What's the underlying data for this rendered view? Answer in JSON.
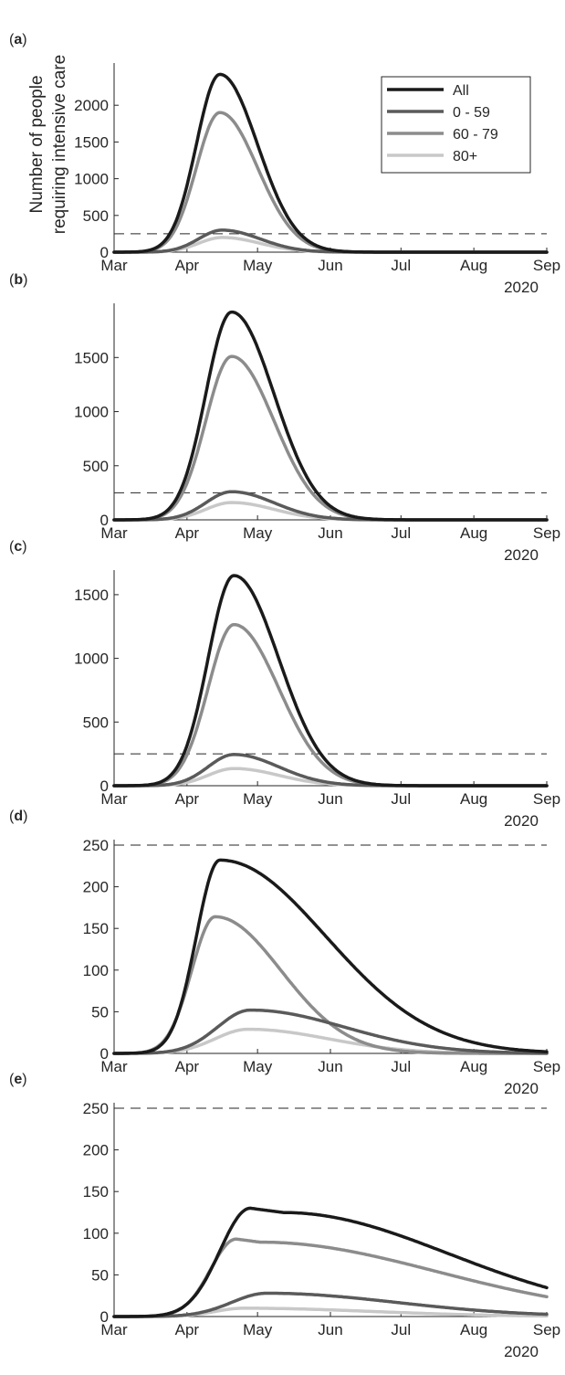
{
  "figure": {
    "ylabel_lines": [
      "Number of people",
      "requiring intensive care"
    ],
    "year_label": "2020",
    "months": [
      "Mar",
      "Apr",
      "May",
      "Jun",
      "Jul",
      "Aug",
      "Sep"
    ],
    "legend": {
      "placement": "top-right (panel a)",
      "entries": [
        {
          "label": "All",
          "color": "#1a1a1a"
        },
        {
          "label": "0 - 59",
          "color": "#5a5a5a"
        },
        {
          "label": "60 - 79",
          "color": "#8c8c8c"
        },
        {
          "label": "80+",
          "color": "#c8c8c8"
        }
      ]
    },
    "threshold_style": "dashed"
  },
  "chart_data": [
    {
      "type": "line",
      "panel_label": "a",
      "x_unit": "2020 date",
      "ylim": [
        0,
        2500
      ],
      "yticks": [
        0,
        500,
        1000,
        1500,
        2000
      ],
      "threshold": 250,
      "series": [
        {
          "name": "All",
          "color": "#1a1a1a",
          "peak_date": "2020-04-15",
          "peak_value": 2420,
          "rise_days": 10,
          "fall_days": 16
        },
        {
          "name": "0 - 59",
          "color": "#5a5a5a",
          "peak_date": "2020-04-16",
          "peak_value": 300,
          "rise_days": 10,
          "fall_days": 16
        },
        {
          "name": "60 - 79",
          "color": "#8c8c8c",
          "peak_date": "2020-04-15",
          "peak_value": 1900,
          "rise_days": 10,
          "fall_days": 16
        },
        {
          "name": "80+",
          "color": "#c8c8c8",
          "peak_date": "2020-04-16",
          "peak_value": 200,
          "rise_days": 10,
          "fall_days": 16
        }
      ]
    },
    {
      "type": "line",
      "panel_label": "b",
      "x_unit": "2020 date",
      "ylim": [
        0,
        1950
      ],
      "yticks": [
        0,
        500,
        1000,
        1500
      ],
      "threshold": 250,
      "series": [
        {
          "name": "All",
          "color": "#1a1a1a",
          "peak_date": "2020-04-20",
          "peak_value": 1920,
          "rise_days": 11,
          "fall_days": 18
        },
        {
          "name": "0 - 59",
          "color": "#5a5a5a",
          "peak_date": "2020-04-20",
          "peak_value": 260,
          "rise_days": 11,
          "fall_days": 18
        },
        {
          "name": "60 - 79",
          "color": "#8c8c8c",
          "peak_date": "2020-04-20",
          "peak_value": 1510,
          "rise_days": 11,
          "fall_days": 18
        },
        {
          "name": "80+",
          "color": "#c8c8c8",
          "peak_date": "2020-04-20",
          "peak_value": 160,
          "rise_days": 11,
          "fall_days": 18
        }
      ]
    },
    {
      "type": "line",
      "panel_label": "c",
      "x_unit": "2020 date",
      "ylim": [
        0,
        1650
      ],
      "yticks": [
        0,
        500,
        1000,
        1500
      ],
      "threshold": 250,
      "series": [
        {
          "name": "All",
          "color": "#1a1a1a",
          "peak_date": "2020-04-21",
          "peak_value": 1650,
          "rise_days": 11,
          "fall_days": 19
        },
        {
          "name": "0 - 59",
          "color": "#5a5a5a",
          "peak_date": "2020-04-21",
          "peak_value": 245,
          "rise_days": 11,
          "fall_days": 19
        },
        {
          "name": "60 - 79",
          "color": "#8c8c8c",
          "peak_date": "2020-04-21",
          "peak_value": 1265,
          "rise_days": 11,
          "fall_days": 19
        },
        {
          "name": "80+",
          "color": "#c8c8c8",
          "peak_date": "2020-04-21",
          "peak_value": 135,
          "rise_days": 11,
          "fall_days": 19
        }
      ]
    },
    {
      "type": "line",
      "panel_label": "d",
      "x_unit": "2020 date",
      "ylim": [
        0,
        250
      ],
      "yticks": [
        0,
        50,
        100,
        150,
        200,
        250
      ],
      "threshold": 250,
      "series": [
        {
          "name": "All",
          "color": "#1a1a1a",
          "peak_date": "2020-04-15",
          "peak_value": 232,
          "rise_days": 10,
          "fall_days": 45
        },
        {
          "name": "0 - 59",
          "color": "#5a5a5a",
          "peak_date": "2020-04-28",
          "peak_value": 52,
          "rise_days": 14,
          "fall_days": 40
        },
        {
          "name": "60 - 79",
          "color": "#8c8c8c",
          "peak_date": "2020-04-13",
          "peak_value": 164,
          "rise_days": 10,
          "fall_days": 28
        },
        {
          "name": "80+",
          "color": "#c8c8c8",
          "peak_date": "2020-04-27",
          "peak_value": 29,
          "rise_days": 14,
          "fall_days": 34
        }
      ]
    },
    {
      "type": "line",
      "panel_label": "e",
      "x_unit": "2020 date",
      "ylim": [
        0,
        250
      ],
      "yticks": [
        0,
        50,
        100,
        150,
        200,
        250
      ],
      "threshold": 250,
      "series": [
        {
          "name": "All",
          "color": "#1a1a1a",
          "peak_date": "2020-04-28",
          "peak_value": 130,
          "rise_days": 13,
          "fall_days": 70,
          "plateau_days": 14
        },
        {
          "name": "0 - 59",
          "color": "#5a5a5a",
          "peak_date": "2020-05-05",
          "peak_value": 28,
          "rise_days": 15,
          "fall_days": 55
        },
        {
          "name": "60 - 79",
          "color": "#8c8c8c",
          "peak_date": "2020-04-22",
          "peak_value": 93,
          "rise_days": 11,
          "fall_days": 75,
          "plateau_days": 10
        },
        {
          "name": "80+",
          "color": "#c8c8c8",
          "peak_date": "2020-04-25",
          "peak_value": 10,
          "rise_days": 12,
          "fall_days": 55
        }
      ]
    }
  ]
}
